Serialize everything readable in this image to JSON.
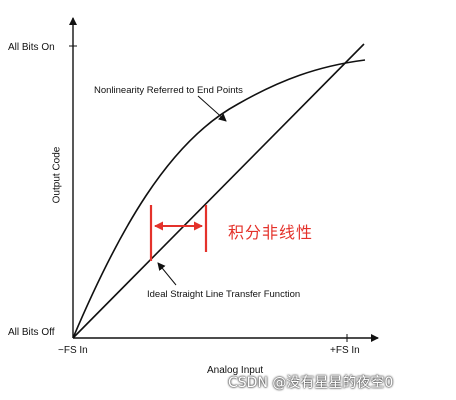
{
  "figure": {
    "y_top_label": "All Bits On",
    "y_bottom_label": "All Bits Off",
    "y_axis_title": "Output Code",
    "x_left_label": "−FS In",
    "x_right_label": "+FS In",
    "x_axis_title": "Analog Input",
    "curve_label": "Nonlinearity Referred to End Points",
    "line_label": "Ideal Straight Line Transfer Function",
    "annotation": "积分非线性",
    "annotation_color": "#e4322b",
    "watermark": "CSDN @没有星星的夜空0"
  }
}
